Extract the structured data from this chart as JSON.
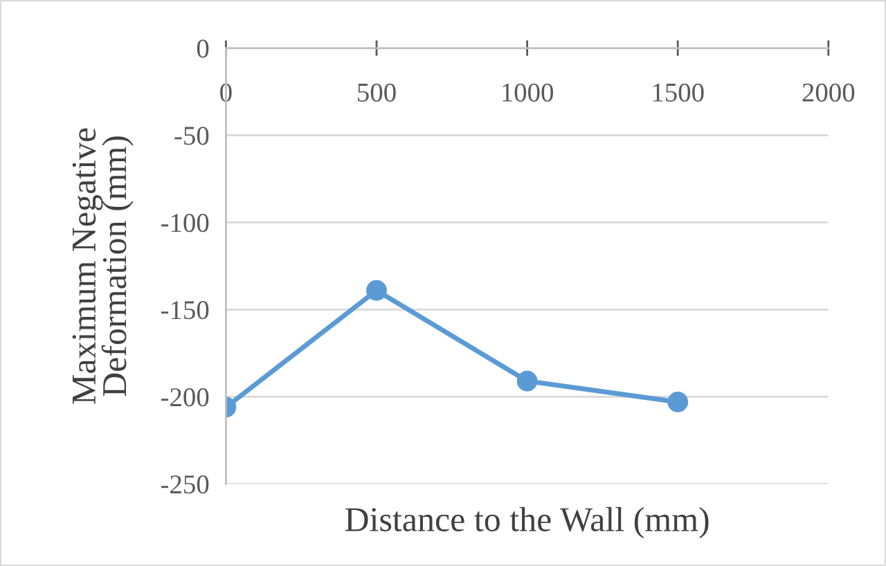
{
  "chart_data": {
    "type": "line",
    "xlabel": "Distance to the Wall (mm)",
    "ylabel": "Maximum Negative\nDeformation (mm)",
    "x": [
      0,
      500,
      1000,
      1500
    ],
    "series": [
      {
        "color": "#5b9bd5",
        "values": [
          -206,
          -139,
          -191,
          -203
        ]
      }
    ],
    "xlim": [
      0,
      2000
    ],
    "xticks": [
      0,
      500,
      1000,
      1500,
      2000
    ],
    "ylim": [
      -250,
      0
    ],
    "yticks": [
      -250,
      -200,
      -150,
      -100,
      -50,
      0
    ],
    "grid": "y",
    "marker": "circle",
    "line_style": "solid"
  }
}
